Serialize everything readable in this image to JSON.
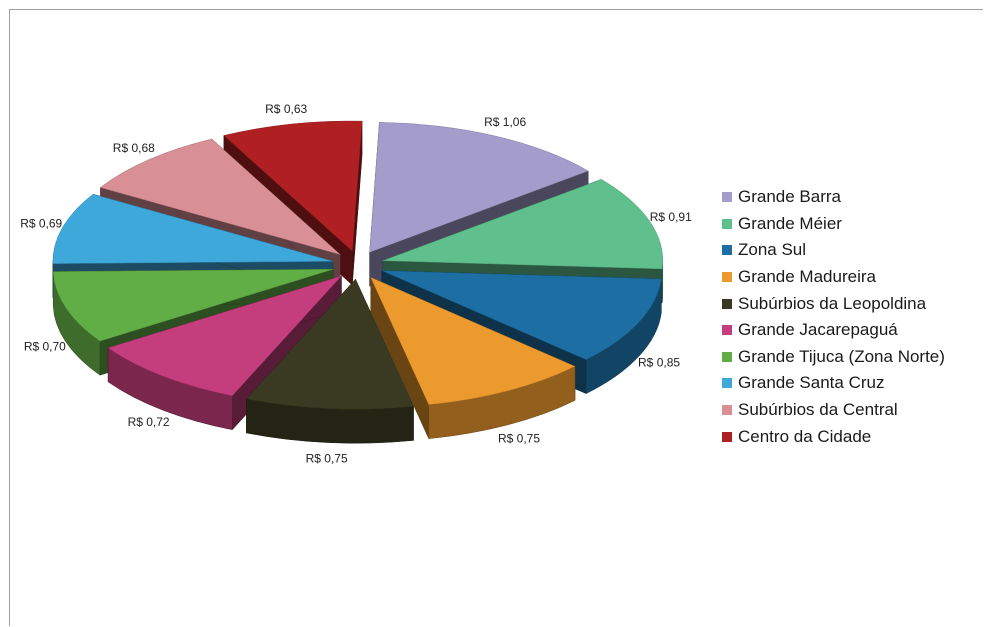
{
  "chart_data": {
    "type": "pie",
    "categories": [
      "Grande Barra",
      "Grande Méier",
      "Zona Sul",
      "Grande Madureira",
      "Subúrbios da Leopoldina",
      "Grande Jacarepaguá",
      "Grande Tijuca (Zona Norte)",
      "Grande Santa Cruz",
      "Subúrbios da Central",
      "Centro da Cidade"
    ],
    "values": [
      1.06,
      0.91,
      0.85,
      0.75,
      0.75,
      0.72,
      0.7,
      0.69,
      0.68,
      0.63
    ],
    "data_labels": [
      "R$ 1,06",
      "R$ 0,91",
      "R$ 0,85",
      "R$ 0,75",
      "R$ 0,75",
      "R$ 0,72",
      "R$ 0,70",
      "R$ 0,69",
      "R$ 0,68",
      "R$ 0,63"
    ],
    "colors": [
      "#a49ccb",
      "#5fc08d",
      "#1d6fa3",
      "#ec9a2d",
      "#3a3a22",
      "#c43d7c",
      "#62ae46",
      "#3ea8db",
      "#d88f96",
      "#b02023"
    ],
    "legend_position": "right",
    "exploded": true,
    "style": "3d"
  }
}
